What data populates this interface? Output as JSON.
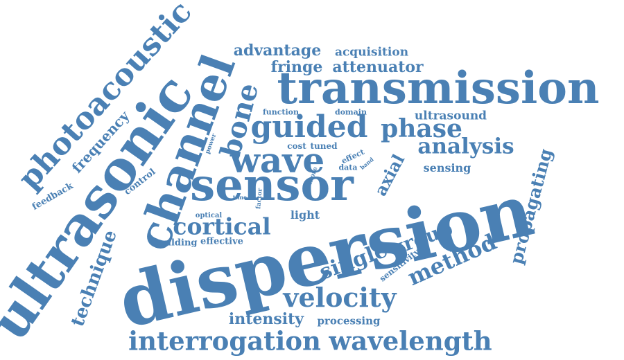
{
  "word_cloud": {
    "color": "#4a80b4",
    "words": [
      {
        "text": "dispersion",
        "weight": 100
      },
      {
        "text": "transmission",
        "weight": 62
      },
      {
        "text": "sensor",
        "weight": 62
      },
      {
        "text": "ultrasonic",
        "weight": 72
      },
      {
        "text": "channel",
        "weight": 60
      },
      {
        "text": "wave",
        "weight": 46
      },
      {
        "text": "photoacoustic",
        "weight": 40
      },
      {
        "text": "guided",
        "weight": 40
      },
      {
        "text": "bone",
        "weight": 36
      },
      {
        "text": "phase",
        "weight": 32
      },
      {
        "text": "interrogation",
        "weight": 34
      },
      {
        "text": "wavelength",
        "weight": 34
      },
      {
        "text": "velocity",
        "weight": 34
      },
      {
        "text": "cortical",
        "weight": 30
      },
      {
        "text": "analysis",
        "weight": 28
      },
      {
        "text": "method",
        "weight": 28
      },
      {
        "text": "single",
        "weight": 26
      },
      {
        "text": "group",
        "weight": 24
      },
      {
        "text": "technique",
        "weight": 24
      },
      {
        "text": "propagating",
        "weight": 22
      },
      {
        "text": "advantage",
        "weight": 20
      },
      {
        "text": "fringe",
        "weight": 20
      },
      {
        "text": "attenuator",
        "weight": 20
      },
      {
        "text": "intensity",
        "weight": 20
      },
      {
        "text": "axial",
        "weight": 20
      },
      {
        "text": "frequency",
        "weight": 18
      },
      {
        "text": "acquisition",
        "weight": 16
      },
      {
        "text": "ultrasound",
        "weight": 16
      },
      {
        "text": "sensing",
        "weight": 15
      },
      {
        "text": "processing",
        "weight": 14
      },
      {
        "text": "light",
        "weight": 14
      },
      {
        "text": "effective",
        "weight": 12
      },
      {
        "text": "building",
        "weight": 12
      },
      {
        "text": "feedback",
        "weight": 12
      },
      {
        "text": "control",
        "weight": 12
      },
      {
        "text": "sensitivity",
        "weight": 11
      },
      {
        "text": "tuned",
        "weight": 11
      },
      {
        "text": "cost",
        "weight": 11
      },
      {
        "text": "effect",
        "weight": 10
      },
      {
        "text": "data",
        "weight": 10
      },
      {
        "text": "function",
        "weight": 10
      },
      {
        "text": "domain",
        "weight": 10
      },
      {
        "text": "optical",
        "weight": 9
      },
      {
        "text": "power",
        "weight": 8
      },
      {
        "text": "more",
        "weight": 8
      },
      {
        "text": "factor",
        "weight": 8
      },
      {
        "text": "band",
        "weight": 7
      },
      {
        "text": "time",
        "weight": 7
      }
    ]
  }
}
